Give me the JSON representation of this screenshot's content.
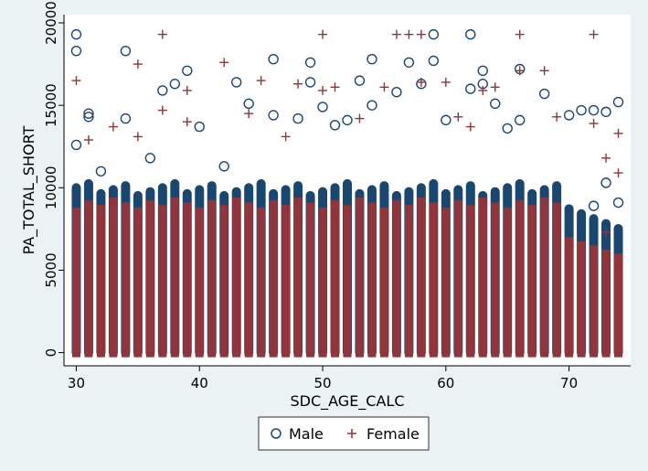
{
  "chart_data": {
    "type": "scatter",
    "xlabel": "SDC_AGE_CALC",
    "ylabel": "PA_TOTAL_SHORT",
    "xlim": [
      29,
      75
    ],
    "ylim": [
      -800,
      20500
    ],
    "x_ticks": [
      30,
      40,
      50,
      60,
      70
    ],
    "y_ticks": [
      0,
      5000,
      10000,
      15000,
      20000
    ],
    "x_range": [
      30,
      74
    ],
    "grid": false,
    "legend": "bottom",
    "series": [
      {
        "name": "Male",
        "marker": "circle",
        "color": "#1a476f",
        "points": [
          [
            30,
            19300
          ],
          [
            30,
            18300
          ],
          [
            30,
            12600
          ],
          [
            31,
            14500
          ],
          [
            31,
            14300
          ],
          [
            32,
            11000
          ],
          [
            34,
            18300
          ],
          [
            34,
            14200
          ],
          [
            36,
            11800
          ],
          [
            37,
            15900
          ],
          [
            38,
            16300
          ],
          [
            39,
            17100
          ],
          [
            40,
            13700
          ],
          [
            42,
            11300
          ],
          [
            43,
            16400
          ],
          [
            44,
            15100
          ],
          [
            46,
            17800
          ],
          [
            46,
            14400
          ],
          [
            48,
            14200
          ],
          [
            49,
            17600
          ],
          [
            49,
            16400
          ],
          [
            50,
            14900
          ],
          [
            51,
            13800
          ],
          [
            52,
            14100
          ],
          [
            53,
            16500
          ],
          [
            54,
            17800
          ],
          [
            54,
            15000
          ],
          [
            56,
            15800
          ],
          [
            57,
            17600
          ],
          [
            58,
            16300
          ],
          [
            59,
            17700
          ],
          [
            59,
            19300
          ],
          [
            60,
            14100
          ],
          [
            62,
            19300
          ],
          [
            62,
            16000
          ],
          [
            63,
            17100
          ],
          [
            63,
            16300
          ],
          [
            64,
            15100
          ],
          [
            65,
            13600
          ],
          [
            66,
            17200
          ],
          [
            66,
            14100
          ],
          [
            68,
            15700
          ],
          [
            70,
            14400
          ],
          [
            71,
            14700
          ],
          [
            72,
            14700
          ],
          [
            73,
            14600
          ],
          [
            74,
            15200
          ],
          [
            73,
            10300
          ],
          [
            74,
            9100
          ],
          [
            72,
            8900
          ]
        ]
      },
      {
        "name": "Female",
        "marker": "plus",
        "color": "#90353b",
        "points": [
          [
            30,
            16500
          ],
          [
            31,
            12900
          ],
          [
            33,
            13700
          ],
          [
            35,
            17500
          ],
          [
            35,
            13100
          ],
          [
            37,
            19300
          ],
          [
            37,
            14700
          ],
          [
            39,
            15900
          ],
          [
            39,
            14000
          ],
          [
            42,
            17600
          ],
          [
            44,
            14500
          ],
          [
            45,
            16500
          ],
          [
            47,
            13100
          ],
          [
            48,
            16300
          ],
          [
            50,
            19300
          ],
          [
            50,
            15900
          ],
          [
            51,
            16100
          ],
          [
            53,
            14200
          ],
          [
            55,
            16100
          ],
          [
            56,
            19300
          ],
          [
            57,
            19300
          ],
          [
            58,
            19300
          ],
          [
            58,
            16400
          ],
          [
            60,
            16400
          ],
          [
            61,
            14300
          ],
          [
            62,
            13700
          ],
          [
            63,
            15900
          ],
          [
            64,
            16100
          ],
          [
            66,
            19300
          ],
          [
            66,
            17100
          ],
          [
            68,
            17100
          ],
          [
            69,
            14300
          ],
          [
            72,
            19300
          ],
          [
            72,
            13900
          ],
          [
            73,
            11800
          ],
          [
            74,
            13300
          ],
          [
            73,
            7300
          ],
          [
            74,
            5100
          ],
          [
            74,
            10900
          ]
        ]
      }
    ]
  }
}
